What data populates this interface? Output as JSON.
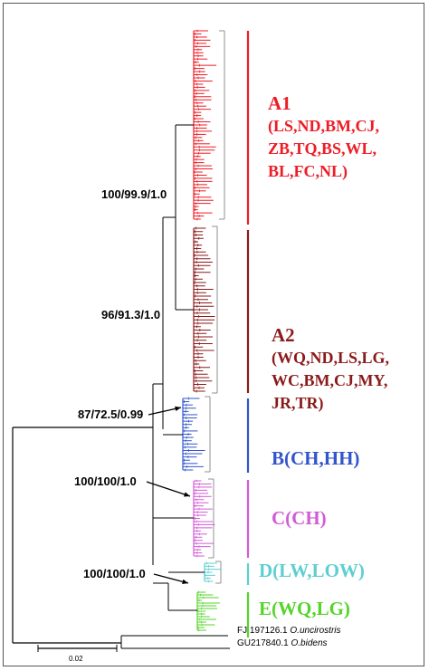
{
  "clades": [
    {
      "id": "A1",
      "color": "#ee1c25",
      "label": "A1",
      "lines": [
        "(LS,ND,BM,CJ,",
        "ZB,TQ,BS,WL,",
        "BL,FC,NL)"
      ]
    },
    {
      "id": "A2",
      "color": "#8b1a1a",
      "label": "A2",
      "lines": [
        "(WQ,ND,LS,LG,",
        "WC,BM,CJ,MY,",
        "JR,TR)"
      ]
    },
    {
      "id": "B",
      "color": "#3355cc",
      "label": "B(CH,HH)",
      "lines": []
    },
    {
      "id": "C",
      "color": "#d25bd6",
      "label": "C(CH)",
      "lines": []
    },
    {
      "id": "D",
      "color": "#5ecfd0",
      "label": "D(LW,LOW)",
      "lines": []
    },
    {
      "id": "E",
      "color": "#55d42a",
      "label": "E(WQ,LG)",
      "lines": []
    }
  ],
  "support_values": {
    "a": "100/99.9/1.0",
    "b": "96/91.3/1.0",
    "c": "87/72.5/0.99",
    "d": "100/100/1.0",
    "e": "100/100/1.0"
  },
  "outgroups": [
    {
      "accession": "FJ 197126.1",
      "species": "O.uncirostris"
    },
    {
      "accession": "GU217840.1",
      "species": "O.bidens"
    }
  ],
  "scale_bar": {
    "label": "0.02"
  }
}
